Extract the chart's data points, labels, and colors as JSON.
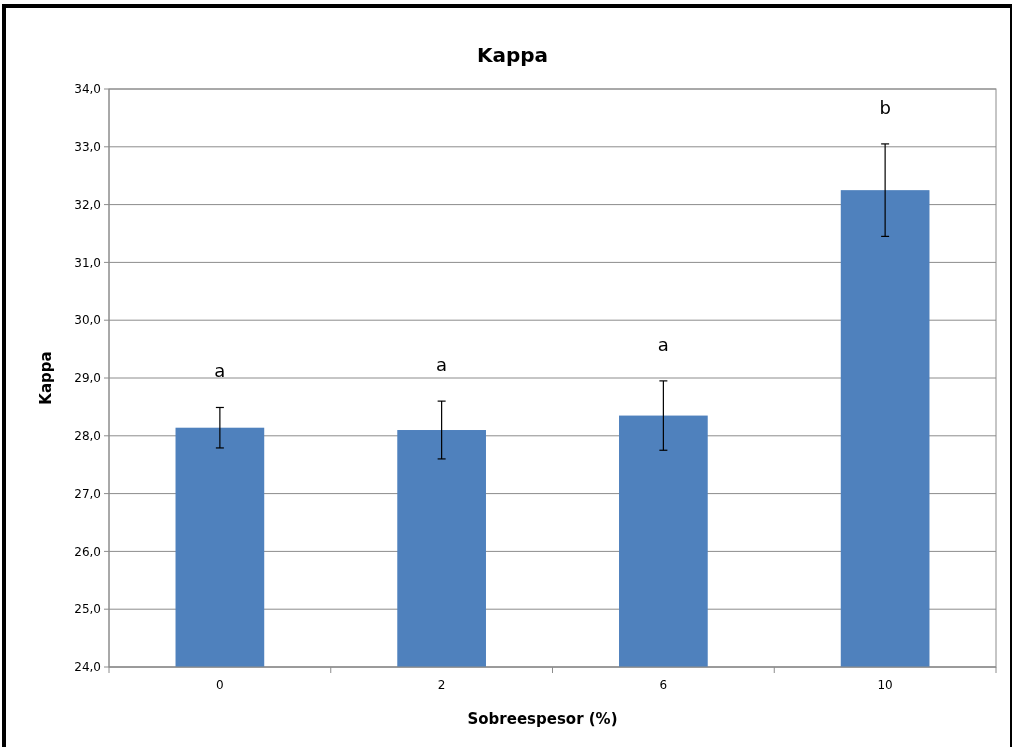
{
  "chart_data": {
    "type": "bar",
    "title": "Kappa",
    "xlabel": "Sobreespesor (%)",
    "ylabel": "Kappa",
    "categories": [
      "0",
      "2",
      "6",
      "10"
    ],
    "values": [
      28.14,
      28.1,
      28.35,
      32.25
    ],
    "errors": [
      0.35,
      0.5,
      0.6,
      0.8
    ],
    "color": "#4f81bd",
    "ylim": [
      24,
      34
    ],
    "yticks": [
      {
        "value": 24,
        "label": "24,0"
      },
      {
        "value": 25,
        "label": "25,0"
      },
      {
        "value": 26,
        "label": "26,0"
      },
      {
        "value": 27,
        "label": "27,0"
      },
      {
        "value": 28,
        "label": "28,0"
      },
      {
        "value": 29,
        "label": "29,0"
      },
      {
        "value": 30,
        "label": "30,0"
      },
      {
        "value": 31,
        "label": "31,0"
      },
      {
        "value": 32,
        "label": "32,0"
      },
      {
        "value": 33,
        "label": "33,0"
      },
      {
        "value": 34,
        "label": "34,0"
      }
    ],
    "grid": "y",
    "annotations": [
      "a",
      "a",
      "a",
      "b"
    ]
  }
}
